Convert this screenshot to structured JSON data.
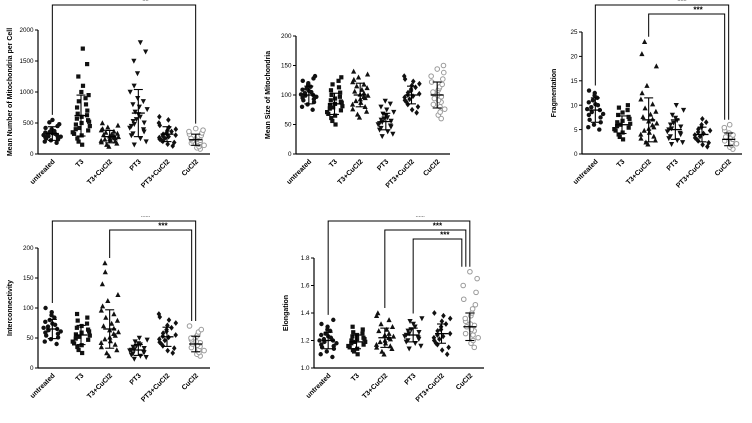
{
  "page": {
    "background": "#ffffff"
  },
  "colors": {
    "filled_marker": "#111111",
    "open_marker_stroke": "#9b9b9b",
    "axis": "#000000"
  },
  "categories": [
    "untreated",
    "T3",
    "T3+CuCl2",
    "PT3",
    "PT3+CuCl2",
    "CuCl2"
  ],
  "chart_data": [
    {
      "type": "scatter",
      "ylabel": "Mean Number of Mitochondria per Cell",
      "ylim": [
        0,
        2000
      ],
      "ytick_values": [
        0,
        500,
        1000,
        1500,
        2000
      ],
      "ytick_labels": [
        "0",
        "500",
        "1000",
        "1500",
        "2000"
      ],
      "categories": [
        "untreated",
        "T3",
        "T3+CuCl2",
        "PT3",
        "PT3+CuCl2",
        "CuCl2"
      ],
      "brackets": [
        {
          "from": 0,
          "to": 5,
          "label": "**"
        }
      ],
      "groups": [
        {
          "name": "untreated",
          "marker": "circle",
          "mean": 330,
          "sd": 110,
          "points": [
            180,
            200,
            220,
            235,
            250,
            260,
            270,
            280,
            290,
            300,
            305,
            315,
            325,
            335,
            345,
            355,
            370,
            385,
            400,
            420,
            450,
            480,
            510,
            550
          ]
        },
        {
          "name": "T3",
          "marker": "square",
          "mean": 620,
          "sd": 330,
          "points": [
            150,
            200,
            250,
            300,
            325,
            350,
            380,
            400,
            420,
            450,
            475,
            500,
            520,
            545,
            570,
            600,
            625,
            650,
            700,
            750,
            800,
            850,
            900,
            950,
            1000,
            1100,
            1250,
            1450,
            1700
          ]
        },
        {
          "name": "T3+CuCl2",
          "marker": "triangle-up",
          "mean": 280,
          "sd": 100,
          "points": [
            120,
            150,
            170,
            190,
            205,
            215,
            225,
            235,
            245,
            255,
            265,
            275,
            285,
            295,
            305,
            315,
            330,
            345,
            365,
            385,
            405,
            430,
            460,
            500
          ]
        },
        {
          "name": "PT3",
          "marker": "triangle-down",
          "mean": 660,
          "sd": 380,
          "points": [
            150,
            200,
            250,
            300,
            330,
            360,
            395,
            420,
            450,
            480,
            505,
            530,
            560,
            600,
            640,
            680,
            720,
            760,
            800,
            850,
            900,
            1000,
            1100,
            1300,
            1500,
            1650,
            1800
          ]
        },
        {
          "name": "PT3+CuCl2",
          "marker": "diamond",
          "mean": 320,
          "sd": 120,
          "points": [
            130,
            160,
            185,
            205,
            220,
            240,
            255,
            265,
            280,
            292,
            305,
            318,
            330,
            345,
            362,
            380,
            400,
            430,
            462,
            500,
            550,
            600
          ]
        },
        {
          "name": "CuCl2",
          "marker": "circle-open",
          "mean": 230,
          "sd": 90,
          "points": [
            80,
            100,
            120,
            140,
            158,
            175,
            190,
            200,
            212,
            222,
            232,
            242,
            252,
            262,
            275,
            288,
            300,
            320,
            340,
            362,
            385,
            410
          ]
        }
      ]
    },
    {
      "type": "scatter",
      "ylabel": "Mean Size of Mitochondria",
      "ylim": [
        0,
        200
      ],
      "ytick_values": [
        0,
        50,
        100,
        150,
        200
      ],
      "ytick_labels": [
        "0",
        "50",
        "100",
        "150",
        "200"
      ],
      "categories": [
        "untreated",
        "T3",
        "T3+CuCl2",
        "PT3",
        "PT3+CuCl2",
        "CuCl2"
      ],
      "brackets": [],
      "groups": [
        {
          "name": "untreated",
          "marker": "circle",
          "mean": 100,
          "sd": 15,
          "points": [
            75,
            80,
            84,
            88,
            91,
            93,
            95,
            97,
            99,
            100,
            101,
            103,
            105,
            107,
            109,
            111,
            114,
            117,
            120,
            124,
            128,
            132
          ]
        },
        {
          "name": "T3",
          "marker": "square",
          "mean": 85,
          "sd": 18,
          "points": [
            50,
            56,
            61,
            65,
            68,
            71,
            74,
            77,
            79,
            81,
            83,
            85,
            87,
            89,
            91,
            94,
            97,
            100,
            104,
            108,
            113,
            118,
            124,
            130
          ]
        },
        {
          "name": "T3+CuCl2",
          "marker": "triangle-up",
          "mean": 100,
          "sd": 20,
          "points": [
            62,
            67,
            72,
            76,
            80,
            84,
            87,
            90,
            93,
            95,
            97,
            99,
            101,
            103,
            106,
            109,
            112,
            115,
            118,
            122,
            126,
            130,
            135,
            140
          ]
        },
        {
          "name": "PT3",
          "marker": "triangle-down",
          "mean": 55,
          "sd": 14,
          "points": [
            30,
            34,
            38,
            41,
            44,
            46,
            48,
            50,
            52,
            54,
            56,
            58,
            60,
            62,
            65,
            68,
            71,
            75,
            80,
            85,
            90
          ]
        },
        {
          "name": "PT3+CuCl2",
          "marker": "diamond",
          "mean": 100,
          "sd": 15,
          "points": [
            70,
            75,
            80,
            84,
            88,
            91,
            93,
            96,
            98,
            100,
            102,
            104,
            107,
            110,
            113,
            116,
            119,
            123,
            127,
            132
          ]
        },
        {
          "name": "CuCl2",
          "marker": "circle-open",
          "mean": 100,
          "sd": 22,
          "points": [
            60,
            66,
            71,
            76,
            80,
            84,
            88,
            91,
            94,
            97,
            100,
            102,
            105,
            108,
            111,
            114,
            118,
            122,
            127,
            132,
            138,
            144,
            150
          ]
        }
      ]
    },
    {
      "type": "scatter",
      "ylabel": "Fragmentation",
      "ylim": [
        0,
        25
      ],
      "ytick_values": [
        0,
        5,
        10,
        15,
        20,
        25
      ],
      "ytick_labels": [
        "0",
        "5",
        "10",
        "15",
        "20",
        "25"
      ],
      "categories": [
        "untreated",
        "T3",
        "T3+CuCl2",
        "PT3",
        "PT3+CuCl2",
        "CuCl2"
      ],
      "brackets": [
        {
          "from": 0,
          "to": 5,
          "label": "***"
        },
        {
          "from": 2,
          "to": 5,
          "label": "***"
        }
      ],
      "groups": [
        {
          "name": "untreated",
          "marker": "circle",
          "mean": 9,
          "sd": 2.5,
          "points": [
            5,
            5.5,
            6,
            6.5,
            7,
            7.5,
            8,
            8.2,
            8.6,
            9,
            9.2,
            9.6,
            10,
            10.2,
            10.6,
            11,
            11.5,
            12,
            12.5,
            13
          ]
        },
        {
          "name": "T3",
          "marker": "square",
          "mean": 6,
          "sd": 1.8,
          "points": [
            3,
            3.5,
            4,
            4.4,
            4.8,
            5.1,
            5.4,
            5.7,
            6,
            6.2,
            6.5,
            6.8,
            7.2,
            7.6,
            8,
            8.5,
            9,
            9.5,
            10
          ]
        },
        {
          "name": "T3+CuCl2",
          "marker": "triangle-up",
          "mean": 7,
          "sd": 4.5,
          "points": [
            2,
            2.4,
            2.8,
            3.2,
            3.6,
            4,
            4.4,
            4.8,
            5.2,
            5.5,
            5.9,
            6.3,
            6.7,
            7.1,
            7.6,
            8.1,
            8.7,
            9.4,
            10.2,
            11.2,
            12.5,
            14,
            18,
            20.5,
            23
          ]
        },
        {
          "name": "PT3",
          "marker": "triangle-down",
          "mean": 5,
          "sd": 2,
          "points": [
            2,
            2.4,
            2.8,
            3.2,
            3.6,
            4,
            4.3,
            4.6,
            5,
            5.2,
            5.6,
            6,
            6.4,
            6.9,
            7.4,
            8,
            9,
            10
          ]
        },
        {
          "name": "PT3+CuCl2",
          "marker": "diamond",
          "mean": 4,
          "sd": 1.5,
          "points": [
            1.5,
            1.9,
            2.3,
            2.7,
            3,
            3.3,
            3.6,
            3.9,
            4.2,
            4.5,
            4.8,
            5.1,
            5.5,
            6,
            6.5,
            7.2
          ]
        },
        {
          "name": "CuCl2",
          "marker": "circle-open",
          "mean": 3,
          "sd": 1.3,
          "points": [
            1,
            1.4,
            1.8,
            2.1,
            2.4,
            2.7,
            3,
            3.2,
            3.5,
            3.9,
            4.3,
            4.8,
            5.4,
            6
          ]
        }
      ]
    },
    {
      "type": "scatter",
      "ylabel": "Interconnectivity",
      "ylim": [
        0,
        200
      ],
      "ytick_values": [
        0,
        50,
        100,
        150,
        200
      ],
      "ytick_labels": [
        "0",
        "50",
        "100",
        "150",
        "200"
      ],
      "categories": [
        "untreated",
        "T3",
        "T3+CuCl2",
        "PT3",
        "PT3+CuCl2",
        "CuCl2"
      ],
      "brackets": [
        {
          "from": 0,
          "to": 5,
          "label": "***"
        },
        {
          "from": 2,
          "to": 5,
          "label": "***"
        }
      ],
      "groups": [
        {
          "name": "untreated",
          "marker": "circle",
          "mean": 65,
          "sd": 16,
          "points": [
            40,
            44,
            48,
            51,
            54,
            57,
            59,
            61,
            63,
            65,
            67,
            69,
            72,
            74,
            77,
            80,
            84,
            88,
            93,
            100
          ]
        },
        {
          "name": "T3",
          "marker": "square",
          "mean": 55,
          "sd": 16,
          "points": [
            25,
            30,
            35,
            38,
            41,
            44,
            47,
            49,
            52,
            54,
            56,
            59,
            61,
            64,
            67,
            70,
            74,
            79,
            84,
            90
          ]
        },
        {
          "name": "T3+CuCl2",
          "marker": "triangle-up",
          "mean": 65,
          "sd": 32,
          "points": [
            20,
            25,
            30,
            35,
            39,
            42,
            45,
            48,
            51,
            54,
            57,
            60,
            63,
            66,
            70,
            74,
            79,
            84,
            90,
            96,
            103,
            112,
            122,
            140,
            160,
            175
          ]
        },
        {
          "name": "PT3",
          "marker": "triangle-down",
          "mean": 30,
          "sd": 9,
          "points": [
            15,
            18,
            20,
            22,
            24,
            26,
            27,
            29,
            30,
            31,
            33,
            35,
            37,
            39,
            41,
            44,
            47,
            50
          ]
        },
        {
          "name": "PT3+CuCl2",
          "marker": "diamond",
          "mean": 52,
          "sd": 16,
          "points": [
            25,
            29,
            33,
            37,
            40,
            43,
            46,
            48,
            51,
            53,
            55,
            58,
            61,
            64,
            67,
            71,
            75,
            80,
            85,
            90
          ]
        },
        {
          "name": "CuCl2",
          "marker": "circle-open",
          "mean": 40,
          "sd": 13,
          "points": [
            20,
            23,
            26,
            29,
            31,
            34,
            36,
            38,
            40,
            42,
            44,
            47,
            50,
            53,
            56,
            60,
            64,
            70
          ]
        }
      ]
    },
    {
      "type": "scatter",
      "ylabel": "Elongation",
      "ylim": [
        1.0,
        1.8
      ],
      "ytick_values": [
        1.0,
        1.2,
        1.4,
        1.6,
        1.8
      ],
      "ytick_labels": [
        "1.0",
        "1.2",
        "1.4",
        "1.6",
        "1.8"
      ],
      "categories": [
        "untreated",
        "T3",
        "T3+CuCl2",
        "PT3",
        "PT3+CuCl2",
        "CuCl2"
      ],
      "brackets": [
        {
          "from": 0,
          "to": 5,
          "label": "***"
        },
        {
          "from": 2,
          "to": 5,
          "label": "***"
        },
        {
          "from": 3,
          "to": 5,
          "label": "***"
        }
      ],
      "groups": [
        {
          "name": "untreated",
          "marker": "circle",
          "mean": 1.2,
          "sd": 0.06,
          "points": [
            1.08,
            1.1,
            1.12,
            1.14,
            1.15,
            1.16,
            1.17,
            1.18,
            1.19,
            1.2,
            1.2,
            1.21,
            1.22,
            1.23,
            1.24,
            1.25,
            1.27,
            1.28,
            1.3,
            1.32,
            1.35
          ]
        },
        {
          "name": "T3",
          "marker": "square",
          "mean": 1.19,
          "sd": 0.05,
          "points": [
            1.1,
            1.12,
            1.13,
            1.14,
            1.15,
            1.16,
            1.17,
            1.18,
            1.19,
            1.19,
            1.2,
            1.21,
            1.21,
            1.22,
            1.23,
            1.24,
            1.25,
            1.26,
            1.28,
            1.3
          ]
        },
        {
          "name": "T3+CuCl2",
          "marker": "triangle-up",
          "mean": 1.22,
          "sd": 0.07,
          "points": [
            1.1,
            1.12,
            1.14,
            1.15,
            1.16,
            1.17,
            1.18,
            1.19,
            1.2,
            1.21,
            1.22,
            1.23,
            1.24,
            1.25,
            1.27,
            1.28,
            1.3,
            1.32,
            1.35,
            1.38,
            1.4
          ]
        },
        {
          "name": "PT3",
          "marker": "triangle-down",
          "mean": 1.24,
          "sd": 0.05,
          "points": [
            1.14,
            1.16,
            1.18,
            1.19,
            1.2,
            1.21,
            1.22,
            1.23,
            1.24,
            1.25,
            1.26,
            1.27,
            1.28,
            1.3,
            1.32,
            1.34,
            1.36
          ]
        },
        {
          "name": "PT3+CuCl2",
          "marker": "diamond",
          "mean": 1.25,
          "sd": 0.07,
          "points": [
            1.1,
            1.13,
            1.15,
            1.17,
            1.18,
            1.2,
            1.21,
            1.22,
            1.23,
            1.24,
            1.25,
            1.27,
            1.28,
            1.3,
            1.32,
            1.34,
            1.36,
            1.38,
            1.4
          ]
        },
        {
          "name": "CuCl2",
          "marker": "circle-open",
          "mean": 1.3,
          "sd": 0.1,
          "points": [
            1.15,
            1.18,
            1.2,
            1.22,
            1.24,
            1.25,
            1.27,
            1.28,
            1.3,
            1.31,
            1.32,
            1.34,
            1.36,
            1.38,
            1.4,
            1.43,
            1.46,
            1.5,
            1.55,
            1.6,
            1.65,
            1.7
          ]
        }
      ]
    }
  ]
}
